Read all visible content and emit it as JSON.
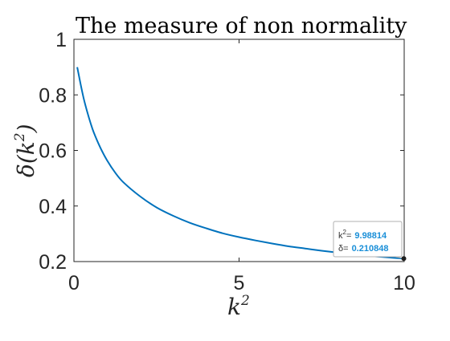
{
  "chart_data": {
    "type": "line",
    "title": "The measure of non normality",
    "xlabel": "k",
    "xlabel_sup": "2",
    "ylabel": "δ(k",
    "ylabel_sup": "2",
    "ylabel_close": ")",
    "xlim": [
      0,
      10
    ],
    "ylim": [
      0.2,
      1
    ],
    "xticks": [
      0,
      5,
      10
    ],
    "xtick_labels": [
      "0",
      "5",
      "10"
    ],
    "yticks": [
      0.2,
      0.4,
      0.6,
      0.8,
      1
    ],
    "ytick_labels": [
      "0.2",
      "0.4",
      "0.6",
      "0.8",
      "1"
    ],
    "grid": false,
    "series": [
      {
        "color": "#0072BD",
        "x": [
          0.1,
          0.2,
          0.3,
          0.4,
          0.5,
          0.6,
          0.8,
          1.0,
          1.25,
          1.5,
          2.0,
          2.5,
          3.0,
          3.5,
          4.0,
          4.5,
          5.0,
          5.5,
          6.0,
          6.5,
          7.0,
          7.5,
          8.0,
          8.5,
          9.0,
          9.5,
          9.99
        ],
        "y": [
          0.9,
          0.84,
          0.785,
          0.74,
          0.7,
          0.665,
          0.61,
          0.565,
          0.52,
          0.485,
          0.435,
          0.395,
          0.365,
          0.34,
          0.32,
          0.302,
          0.288,
          0.276,
          0.265,
          0.255,
          0.247,
          0.239,
          0.232,
          0.226,
          0.22,
          0.215,
          0.211
        ]
      }
    ],
    "datatip": {
      "x_key": "k",
      "x_key_sup": "2",
      "x_sep": "=",
      "x_value": "9.98814",
      "y_key": "δ",
      "y_sep": "=",
      "y_value": "0.210848",
      "x": 9.98814,
      "y": 0.210848
    }
  }
}
